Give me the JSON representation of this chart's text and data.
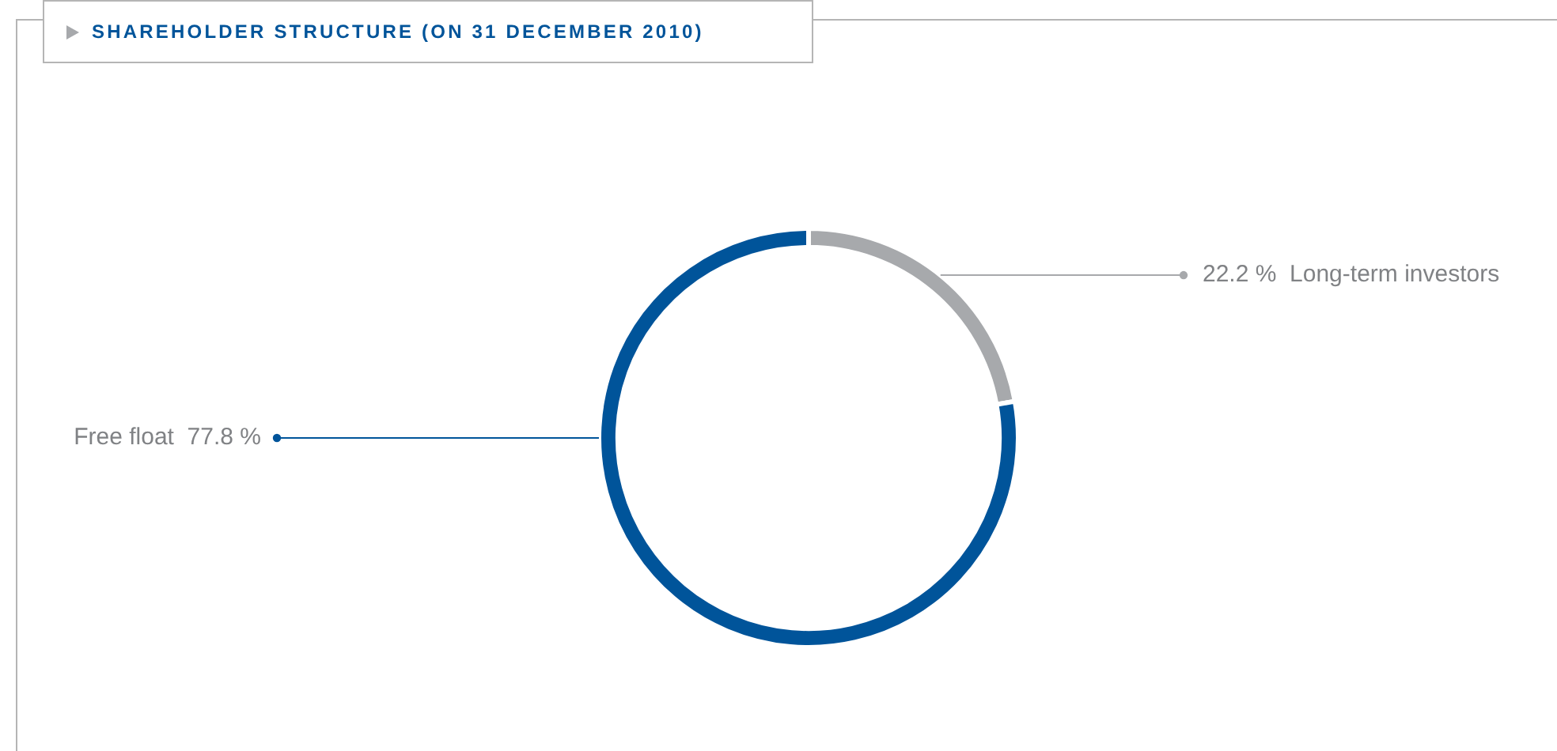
{
  "chart_data": {
    "type": "donut",
    "title": "SHAREHOLDER STRUCTURE (ON 31 DECEMBER 2010)",
    "categories": [
      "Long-term investors",
      "Free float"
    ],
    "values": [
      22.2,
      77.8
    ],
    "value_labels": [
      "22.2 %",
      "77.8 %"
    ],
    "colors": [
      "#a7a9ac",
      "#00549a"
    ]
  }
}
